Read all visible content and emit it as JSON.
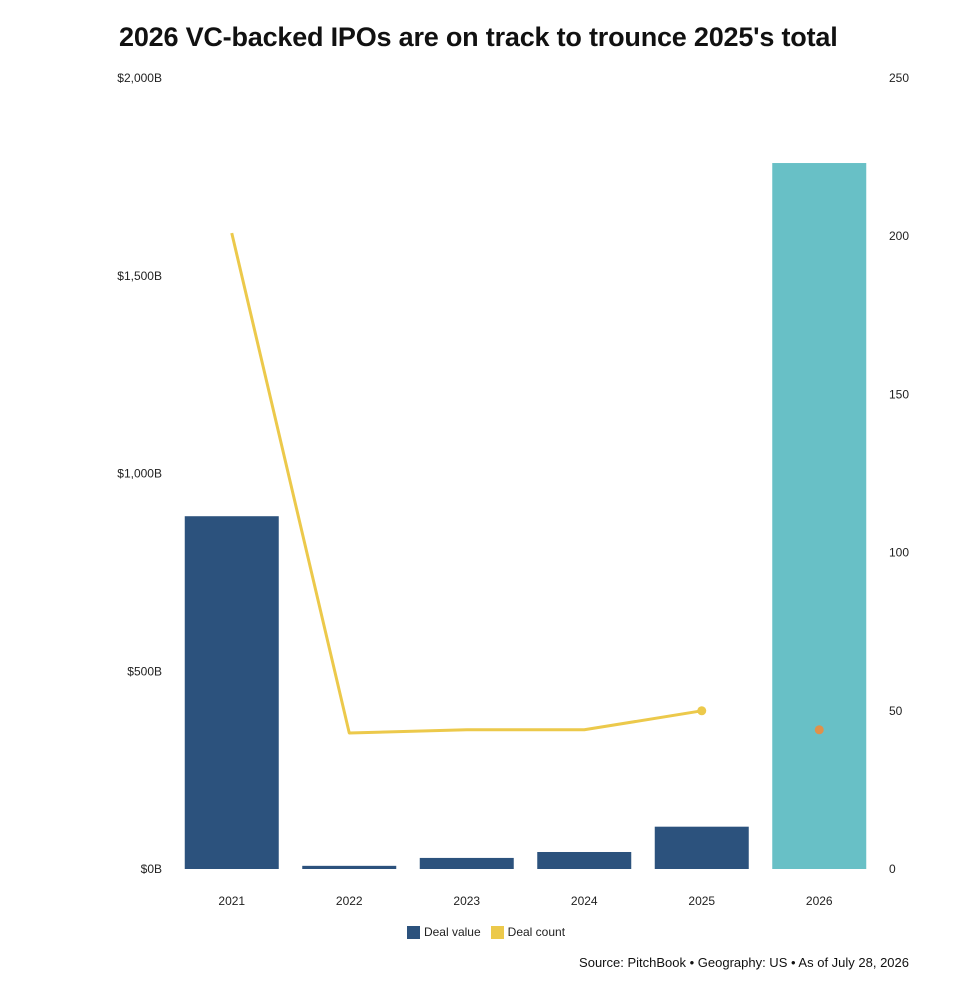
{
  "title": "2026 VC-backed IPOs are on track to trounce 2025's total",
  "source": "Source: PitchBook • Geography: US • As of July 28, 2026",
  "chart_data": {
    "type": "bar",
    "categories": [
      "2021",
      "2022",
      "2023",
      "2024",
      "2025",
      "2026"
    ],
    "y_left": {
      "ylim": [
        0,
        2000
      ],
      "ticks": [
        0,
        500,
        1000,
        1500,
        2000
      ],
      "tick_labels": [
        "$0B",
        "$500B",
        "$1,000B",
        "$1,500B",
        "$2,000B"
      ]
    },
    "y_right": {
      "ylim": [
        0,
        250
      ],
      "ticks": [
        0,
        50,
        100,
        150,
        200,
        250
      ],
      "tick_labels": [
        "0",
        "50",
        "100",
        "150",
        "200",
        "250"
      ]
    },
    "series": [
      {
        "name": "Deal value",
        "type": "bar",
        "axis": "left",
        "color": "#2c527d",
        "values": [
          892,
          8,
          28,
          43,
          107,
          1785
        ],
        "highlight_color": "#68c0c6",
        "highlight_index": 5
      },
      {
        "name": "Deal count",
        "type": "line",
        "axis": "right",
        "color": "#ecc94b",
        "values": [
          201,
          43,
          44,
          44,
          50,
          44
        ],
        "line_points": 5,
        "marker_color_last_actual": "#ecc94b",
        "marker_color_projected": "#e0914a"
      }
    ],
    "legend": {
      "position": "bottom",
      "items": [
        {
          "label": "Deal value",
          "color": "#2c527d"
        },
        {
          "label": "Deal count",
          "color": "#ecc94b"
        }
      ]
    },
    "grid": false
  }
}
